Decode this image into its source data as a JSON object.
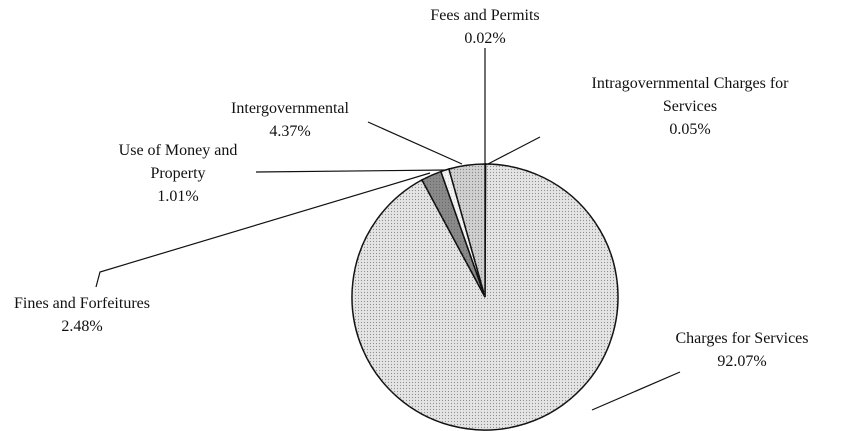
{
  "chart_data": {
    "type": "pie",
    "categories": [
      "Fees and Permits",
      "Intragovernmental Charges for Services",
      "Charges for Services",
      "Fines and Forfeitures",
      "Use of Money and Property",
      "Intergovernmental"
    ],
    "values": [
      0.02,
      0.05,
      92.07,
      2.48,
      1.01,
      4.37
    ],
    "value_labels": [
      "0.02%",
      "0.05%",
      "92.07%",
      "2.48%",
      "1.01%",
      "4.37%"
    ],
    "colors": [
      "#d8d8d8",
      "#d8d8d8",
      "#e4e4e4",
      "#8a8a8a",
      "#f4f4f4",
      "#d0d0d0"
    ]
  }
}
